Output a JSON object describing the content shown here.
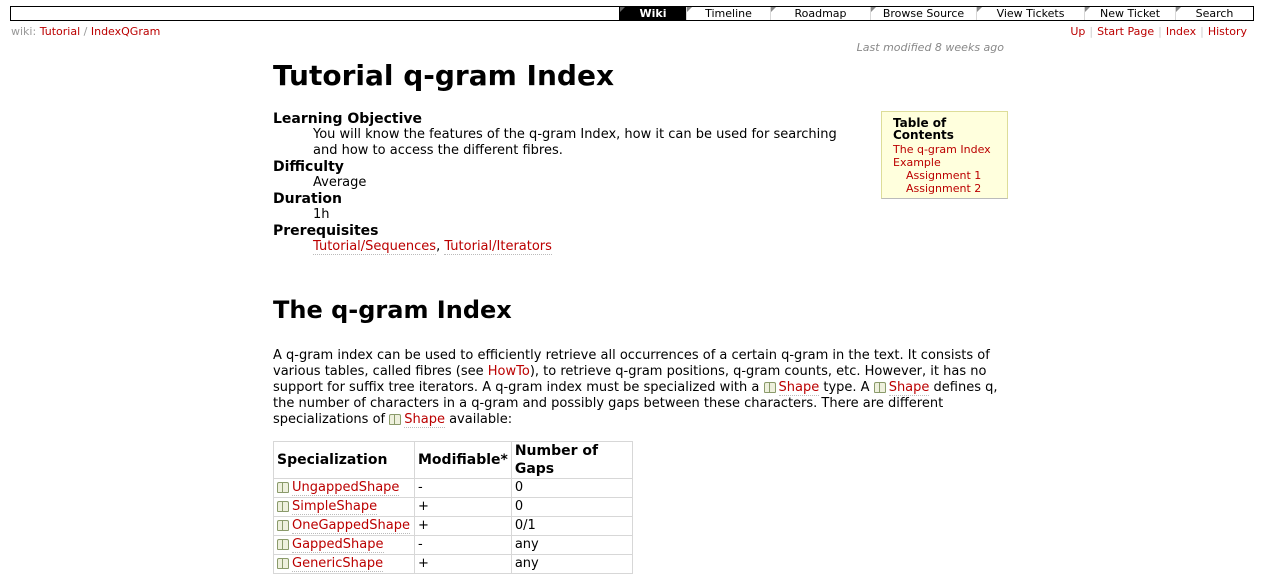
{
  "nav": {
    "items": [
      "Wiki",
      "Timeline",
      "Roadmap",
      "Browse Source",
      "View Tickets",
      "New Ticket",
      "Search"
    ],
    "active": "Wiki"
  },
  "breadcrumb": {
    "prefix": "wiki:",
    "parts": [
      "Tutorial",
      "IndexQGram"
    ],
    "separator": "/"
  },
  "ctxtnav": [
    "Up",
    "Start Page",
    "Index",
    "History"
  ],
  "last_modified": "Last modified 8 weeks ago",
  "page": {
    "title": "Tutorial q-gram Index",
    "info": [
      {
        "term": "Learning Objective",
        "desc": "You will know the features of the q-gram Index, how it can be used for searching and how to access the different fibres."
      },
      {
        "term": "Difficulty",
        "desc": "Average"
      },
      {
        "term": "Duration",
        "desc": "1h"
      },
      {
        "term": "Prerequisites",
        "links": [
          "Tutorial/Sequences",
          "Tutorial/Iterators"
        ],
        "sep": ", "
      }
    ],
    "toc": {
      "heading": "Table of Contents",
      "items": [
        "The q-gram Index",
        "Example"
      ],
      "subitems": [
        "Assignment 1",
        "Assignment 2"
      ]
    },
    "section_title": "The q-gram Index",
    "paragraph": {
      "t1": "A q-gram index can be used to efficiently retrieve all occurrences of a certain q-gram in the text. It consists of various tables, called fibres (see ",
      "link_howto": "HowTo",
      "t2": "), to retrieve q-gram positions, q-gram counts, etc. However, it has no support for suffix tree iterators. A q-gram index must be specialized with a ",
      "link_shape": "Shape",
      "t3": " type. A ",
      "t4": " defines q, the number of characters in a q-gram and possibly gaps between these characters. There are different specializations of ",
      "t5": " available:"
    },
    "table": {
      "headers": [
        "Specialization",
        "Modifiable*",
        "Number of Gaps"
      ],
      "rows": [
        [
          "UngappedShape",
          "-",
          "0"
        ],
        [
          "SimpleShape",
          "+",
          "0"
        ],
        [
          "OneGappedShape",
          "+",
          "0/1"
        ],
        [
          "GappedShape",
          "-",
          "any"
        ],
        [
          "GenericShape",
          "+",
          "any"
        ]
      ]
    }
  },
  "colors": {
    "link": "#bb0000",
    "toc_bg": "#ffffdd",
    "nav_active_bg": "#000000"
  },
  "icons": {
    "doc_link": "book-icon"
  }
}
